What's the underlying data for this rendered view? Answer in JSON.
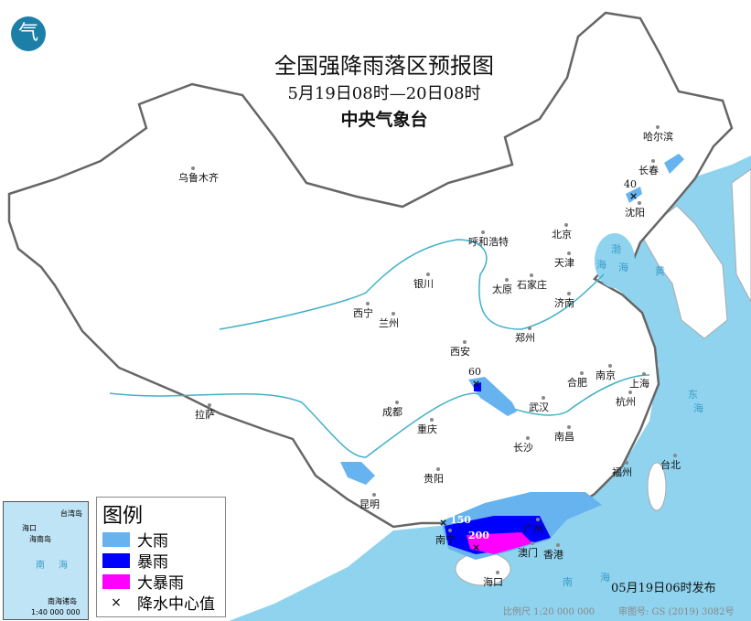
{
  "title": "全国强降雨落区预报图",
  "period": "5月19日08时—20日08时",
  "issuer": "中央气象台",
  "logo_text": "气",
  "colors": {
    "heavy_rain": "#66b3f0",
    "rainstorm": "#0000ff",
    "heavy_rainstorm": "#ff00ff",
    "sea": "#8fd3ee",
    "land": "#ffffff"
  },
  "legend": {
    "title": "图例",
    "items": [
      {
        "label": "大雨",
        "color": "#66b3f0"
      },
      {
        "label": "暴雨",
        "color": "#0000ff"
      },
      {
        "label": "大暴雨",
        "color": "#ff00ff"
      },
      {
        "label": "降水中心值",
        "symbol": "×"
      }
    ]
  },
  "cities": [
    "乌鲁木齐",
    "哈尔滨",
    "长春",
    "沈阳",
    "呼和浩特",
    "北京",
    "天津",
    "银川",
    "太原",
    "石家庄",
    "济南",
    "西宁",
    "兰州",
    "西安",
    "郑州",
    "合肥",
    "南京",
    "上海",
    "杭州",
    "武汉",
    "拉萨",
    "成都",
    "重庆",
    "长沙",
    "南昌",
    "福州",
    "台北",
    "贵阳",
    "昆明",
    "南宁",
    "广州",
    "澳门",
    "香港",
    "海口"
  ],
  "seas": [
    "渤",
    "海",
    "黄",
    "海",
    "东",
    "海",
    "南",
    "海"
  ],
  "rain_centers": [
    "40",
    "60",
    "150",
    "200"
  ],
  "inset": {
    "labels": [
      "海口",
      "海南岛",
      "台湾岛",
      "南",
      "海",
      "南海诸岛"
    ],
    "scale": "1:40 000 000"
  },
  "footer": {
    "scale": "比例尺 1:20 000 000",
    "approval": "审图号: GS (2019) 3082号",
    "published": "05月19日06时发布"
  }
}
